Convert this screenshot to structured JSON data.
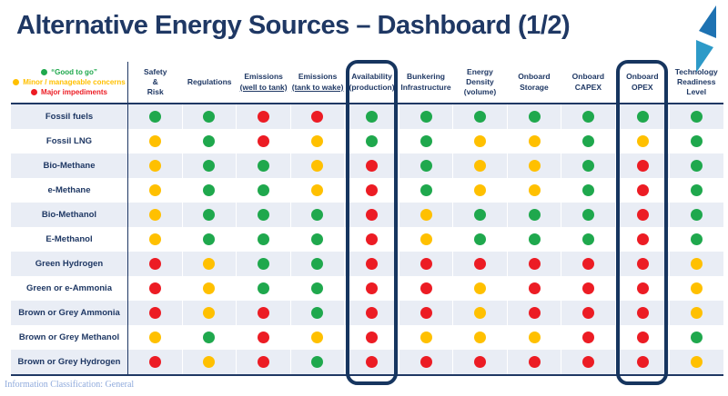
{
  "header": {
    "title": "Alternative Energy Sources – Dashboard (1/2)"
  },
  "legend": {
    "items": [
      {
        "label": "“Good to go”",
        "color": "#1FA84D"
      },
      {
        "label": "Minor / manageable concerns",
        "color": "#FFC000"
      },
      {
        "label": "Major impediments",
        "color": "#EC1C24"
      }
    ]
  },
  "table": {
    "columns": [
      {
        "id": "safety-risk",
        "lines": [
          "Safety",
          "&",
          "Risk"
        ],
        "underline": []
      },
      {
        "id": "regulations",
        "lines": [
          "Regulations"
        ],
        "underline": []
      },
      {
        "id": "emissions-well-to-tank",
        "lines": [
          "Emissions",
          "(well to tank)"
        ],
        "underline": [
          1
        ]
      },
      {
        "id": "emissions-tank-to-wake",
        "lines": [
          "Emissions",
          "(tank to wake)"
        ],
        "underline": [
          1
        ]
      },
      {
        "id": "availability-production",
        "lines": [
          "Availability",
          "(production)"
        ],
        "underline": []
      },
      {
        "id": "bunkering-infrastructure",
        "lines": [
          "Bunkering",
          "Infrastructure"
        ],
        "underline": []
      },
      {
        "id": "energy-density-volume",
        "lines": [
          "Energy",
          "Density",
          "(volume)"
        ],
        "underline": []
      },
      {
        "id": "onboard-storage",
        "lines": [
          "Onboard",
          "Storage"
        ],
        "underline": []
      },
      {
        "id": "onboard-capex",
        "lines": [
          "Onboard",
          "CAPEX"
        ],
        "underline": []
      },
      {
        "id": "onboard-opex",
        "lines": [
          "Onboard",
          "OPEX"
        ],
        "underline": []
      },
      {
        "id": "technology-readiness-level",
        "lines": [
          "Technology",
          "Readiness",
          "Level"
        ],
        "underline": []
      }
    ],
    "highlighted_columns": [
      "availability-production",
      "onboard-opex"
    ],
    "rows": [
      {
        "label": "Fossil fuels",
        "values": [
          "green",
          "green",
          "red",
          "red",
          "green",
          "green",
          "green",
          "green",
          "green",
          "green",
          "green"
        ]
      },
      {
        "label": "Fossil LNG",
        "values": [
          "yellow",
          "green",
          "red",
          "yellow",
          "green",
          "green",
          "yellow",
          "yellow",
          "green",
          "yellow",
          "green"
        ]
      },
      {
        "label": "Bio-Methane",
        "values": [
          "yellow",
          "green",
          "green",
          "yellow",
          "red",
          "green",
          "yellow",
          "yellow",
          "green",
          "red",
          "green"
        ]
      },
      {
        "label": "e-Methane",
        "values": [
          "yellow",
          "green",
          "green",
          "yellow",
          "red",
          "green",
          "yellow",
          "yellow",
          "green",
          "red",
          "green"
        ]
      },
      {
        "label": "Bio-Methanol",
        "values": [
          "yellow",
          "green",
          "green",
          "green",
          "red",
          "yellow",
          "green",
          "green",
          "green",
          "red",
          "green"
        ]
      },
      {
        "label": "E-Methanol",
        "values": [
          "yellow",
          "green",
          "green",
          "green",
          "red",
          "yellow",
          "green",
          "green",
          "green",
          "red",
          "green"
        ]
      },
      {
        "label": "Green Hydrogen",
        "values": [
          "red",
          "yellow",
          "green",
          "green",
          "red",
          "red",
          "red",
          "red",
          "red",
          "red",
          "yellow"
        ]
      },
      {
        "label": "Green or e-Ammonia",
        "values": [
          "red",
          "yellow",
          "green",
          "green",
          "red",
          "red",
          "yellow",
          "red",
          "red",
          "red",
          "yellow"
        ]
      },
      {
        "label": "Brown or Grey Ammonia",
        "values": [
          "red",
          "yellow",
          "red",
          "green",
          "red",
          "red",
          "yellow",
          "red",
          "red",
          "red",
          "yellow"
        ]
      },
      {
        "label": "Brown or Grey Methanol",
        "values": [
          "yellow",
          "green",
          "red",
          "yellow",
          "red",
          "yellow",
          "yellow",
          "yellow",
          "red",
          "red",
          "green"
        ]
      },
      {
        "label": "Brown or Grey Hydrogen",
        "values": [
          "red",
          "yellow",
          "red",
          "green",
          "red",
          "red",
          "red",
          "red",
          "red",
          "red",
          "yellow"
        ]
      }
    ]
  },
  "status_colors": {
    "green": "#1FA84D",
    "yellow": "#FFC000",
    "red": "#EC1C24"
  },
  "theme": {
    "navy": "#1F3864",
    "row_stripe": "#E9EDF5",
    "highlight_border": "#16355F",
    "logo_top": "#1E72B2",
    "logo_bottom": "#2D9AC8",
    "footer_text": "#8FAADC"
  },
  "footer": {
    "classification": "Information Classification: General"
  }
}
